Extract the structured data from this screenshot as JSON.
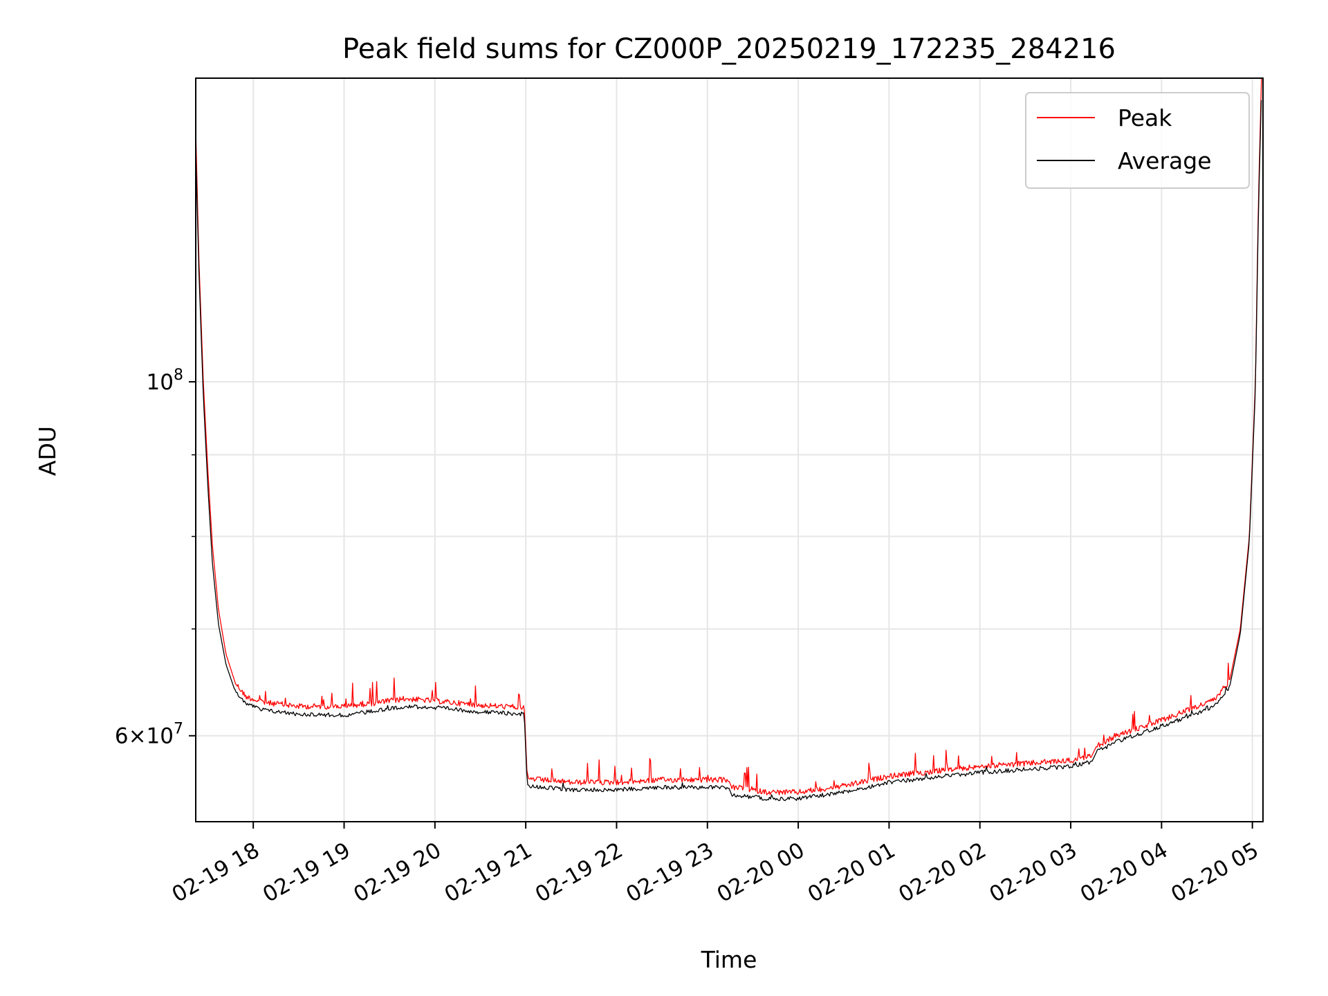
{
  "chart_data": {
    "type": "line",
    "title": "Peak field sums for CZ000P_20250219_172235_284216",
    "xlabel": "Time",
    "ylabel": "ADU",
    "y_scale": "log",
    "ylim": [
      53000000,
      155000000
    ],
    "xlim": [
      "2025-02-19 17:22",
      "2025-02-20 05:07"
    ],
    "grid": true,
    "legend_position": "top-right",
    "x_ticks": [
      {
        "t": "2025-02-19 18:00",
        "label": "02-19 18"
      },
      {
        "t": "2025-02-19 19:00",
        "label": "02-19 19"
      },
      {
        "t": "2025-02-19 20:00",
        "label": "02-19 20"
      },
      {
        "t": "2025-02-19 21:00",
        "label": "02-19 21"
      },
      {
        "t": "2025-02-19 22:00",
        "label": "02-19 22"
      },
      {
        "t": "2025-02-19 23:00",
        "label": "02-19 23"
      },
      {
        "t": "2025-02-20 00:00",
        "label": "02-20 00"
      },
      {
        "t": "2025-02-20 01:00",
        "label": "02-20 01"
      },
      {
        "t": "2025-02-20 02:00",
        "label": "02-20 02"
      },
      {
        "t": "2025-02-20 03:00",
        "label": "02-20 03"
      },
      {
        "t": "2025-02-20 04:00",
        "label": "02-20 04"
      },
      {
        "t": "2025-02-20 05:00",
        "label": "02-20 05"
      }
    ],
    "y_major_ticks": [
      {
        "value": 60000000,
        "mant": "6",
        "exp": "7"
      },
      {
        "value": 100000000,
        "mant": "",
        "exp": "8"
      }
    ],
    "y_minor_ticks": [
      70000000,
      80000000,
      90000000
    ],
    "series": [
      {
        "name": "Peak",
        "color": "#ff0000",
        "x": [
          "2025-02-19 17:22",
          "2025-02-19 17:24",
          "2025-02-19 17:27",
          "2025-02-19 17:30",
          "2025-02-19 17:33",
          "2025-02-19 17:37",
          "2025-02-19 17:42",
          "2025-02-19 17:48",
          "2025-02-19 17:55",
          "2025-02-19 18:05",
          "2025-02-19 18:30",
          "2025-02-19 19:00",
          "2025-02-19 19:20",
          "2025-02-19 19:40",
          "2025-02-19 20:00",
          "2025-02-19 20:30",
          "2025-02-19 20:59",
          "2025-02-19 21:01",
          "2025-02-19 21:30",
          "2025-02-19 22:00",
          "2025-02-19 22:30",
          "2025-02-19 23:14",
          "2025-02-19 23:16",
          "2025-02-19 23:40",
          "2025-02-20 00:00",
          "2025-02-20 00:30",
          "2025-02-20 01:00",
          "2025-02-20 02:00",
          "2025-02-20 03:00",
          "2025-02-20 03:14",
          "2025-02-20 03:17",
          "2025-02-20 03:30",
          "2025-02-20 03:55",
          "2025-02-20 04:20",
          "2025-02-20 04:35",
          "2025-02-20 04:45",
          "2025-02-20 04:52",
          "2025-02-20 04:58",
          "2025-02-20 05:02",
          "2025-02-20 05:04",
          "2025-02-20 05:06"
        ],
        "y": [
          144000000,
          120000000,
          100000000,
          88000000,
          79000000,
          72000000,
          67500000,
          64800000,
          63500000,
          63000000,
          62600000,
          62600000,
          62900000,
          63300000,
          63100000,
          62700000,
          62500000,
          56400000,
          56100000,
          56100000,
          56300000,
          56300000,
          55700000,
          55300000,
          55300000,
          55800000,
          56600000,
          57400000,
          57900000,
          58300000,
          59100000,
          60000000,
          61100000,
          62400000,
          63200000,
          65000000,
          70000000,
          80000000,
          100000000,
          130000000,
          155000000
        ]
      },
      {
        "name": "Average",
        "color": "#000000",
        "x": [
          "2025-02-19 17:22",
          "2025-02-19 17:24",
          "2025-02-19 17:27",
          "2025-02-19 17:30",
          "2025-02-19 17:33",
          "2025-02-19 17:37",
          "2025-02-19 17:42",
          "2025-02-19 17:48",
          "2025-02-19 17:55",
          "2025-02-19 18:05",
          "2025-02-19 18:30",
          "2025-02-19 19:00",
          "2025-02-19 19:20",
          "2025-02-19 19:40",
          "2025-02-19 20:00",
          "2025-02-19 20:30",
          "2025-02-19 20:59",
          "2025-02-19 21:01",
          "2025-02-19 21:30",
          "2025-02-19 22:00",
          "2025-02-19 22:30",
          "2025-02-19 23:14",
          "2025-02-19 23:16",
          "2025-02-19 23:40",
          "2025-02-20 00:00",
          "2025-02-20 00:30",
          "2025-02-20 01:00",
          "2025-02-20 02:00",
          "2025-02-20 03:00",
          "2025-02-20 03:14",
          "2025-02-20 03:17",
          "2025-02-20 03:30",
          "2025-02-20 03:55",
          "2025-02-20 04:20",
          "2025-02-20 04:35",
          "2025-02-20 04:45",
          "2025-02-20 04:52",
          "2025-02-20 04:58",
          "2025-02-20 05:02",
          "2025-02-20 05:04",
          "2025-02-20 05:06"
        ],
        "y": [
          140000000,
          118000000,
          98000000,
          86000000,
          77000000,
          70500000,
          66500000,
          64000000,
          62900000,
          62300000,
          61900000,
          61800000,
          62200000,
          62600000,
          62500000,
          62100000,
          61900000,
          55800000,
          55500000,
          55500000,
          55700000,
          55700000,
          55100000,
          54800000,
          54800000,
          55300000,
          56100000,
          56900000,
          57400000,
          57800000,
          58600000,
          59500000,
          60600000,
          61800000,
          62600000,
          64400000,
          69500000,
          79500000,
          99000000,
          128000000,
          152000000
        ]
      }
    ]
  }
}
